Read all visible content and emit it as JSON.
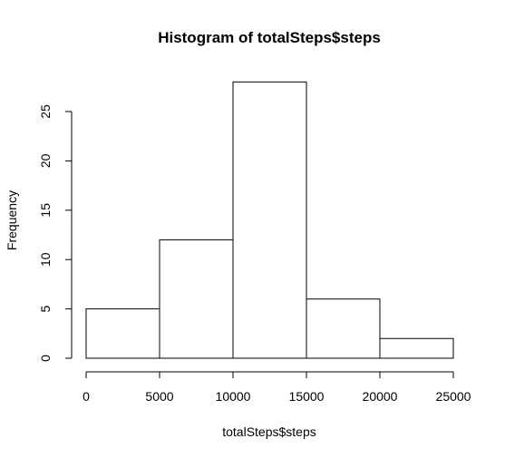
{
  "chart_data": {
    "type": "bar",
    "title": "Histogram of totalSteps$steps",
    "xlabel": "totalSteps$steps",
    "ylabel": "Frequency",
    "bins": [
      {
        "start": 0,
        "end": 5000,
        "value": 5
      },
      {
        "start": 5000,
        "end": 10000,
        "value": 12
      },
      {
        "start": 10000,
        "end": 15000,
        "value": 28
      },
      {
        "start": 15000,
        "end": 20000,
        "value": 6
      },
      {
        "start": 20000,
        "end": 25000,
        "value": 2
      }
    ],
    "xlim": [
      0,
      25000
    ],
    "xticks": [
      0,
      5000,
      10000,
      15000,
      20000,
      25000
    ],
    "yticks": [
      0,
      5,
      10,
      15,
      20,
      25
    ],
    "grid": false,
    "colors": {
      "bar_fill": "#ffffff",
      "bar_stroke": "#000000"
    }
  }
}
